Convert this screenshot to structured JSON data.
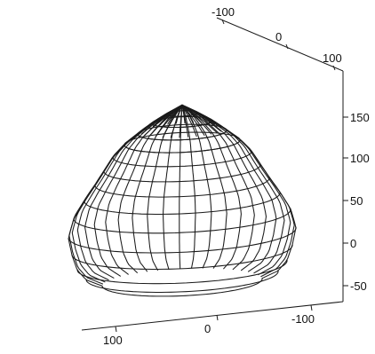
{
  "chart_data": {
    "type": "surface3d",
    "title": "",
    "axes": {
      "x_top": {
        "ticks": [
          -100,
          0,
          100
        ],
        "labels": [
          "-100",
          "0",
          "100"
        ]
      },
      "x_bottom": {
        "ticks": [
          100,
          0,
          -100
        ],
        "labels": [
          "100",
          "0",
          "-100"
        ]
      },
      "z_right": {
        "ticks": [
          -50,
          0,
          50,
          100,
          150
        ],
        "labels": [
          "-50",
          "0",
          "50",
          "100",
          "150"
        ],
        "range": [
          -50,
          160
        ]
      }
    },
    "surface": {
      "description_type": "surface_of_revolution",
      "z_range": [
        -50,
        158
      ],
      "profile": [
        {
          "z": -50,
          "r": 90
        },
        {
          "z": -42,
          "r": 108
        },
        {
          "z": -30,
          "r": 118
        },
        {
          "z": -12,
          "r": 124
        },
        {
          "z": 8,
          "r": 128
        },
        {
          "z": 30,
          "r": 122
        },
        {
          "z": 50,
          "r": 110
        },
        {
          "z": 68,
          "r": 98
        },
        {
          "z": 84,
          "r": 88
        },
        {
          "z": 100,
          "r": 78
        },
        {
          "z": 114,
          "r": 65
        },
        {
          "z": 126,
          "r": 50
        },
        {
          "z": 138,
          "r": 34
        },
        {
          "z": 148,
          "r": 18
        },
        {
          "z": 158,
          "r": 0
        }
      ],
      "meridians": 44,
      "parallels": 15,
      "wire_color": "#1a1a1a",
      "fill_color": "#ffffff"
    }
  }
}
